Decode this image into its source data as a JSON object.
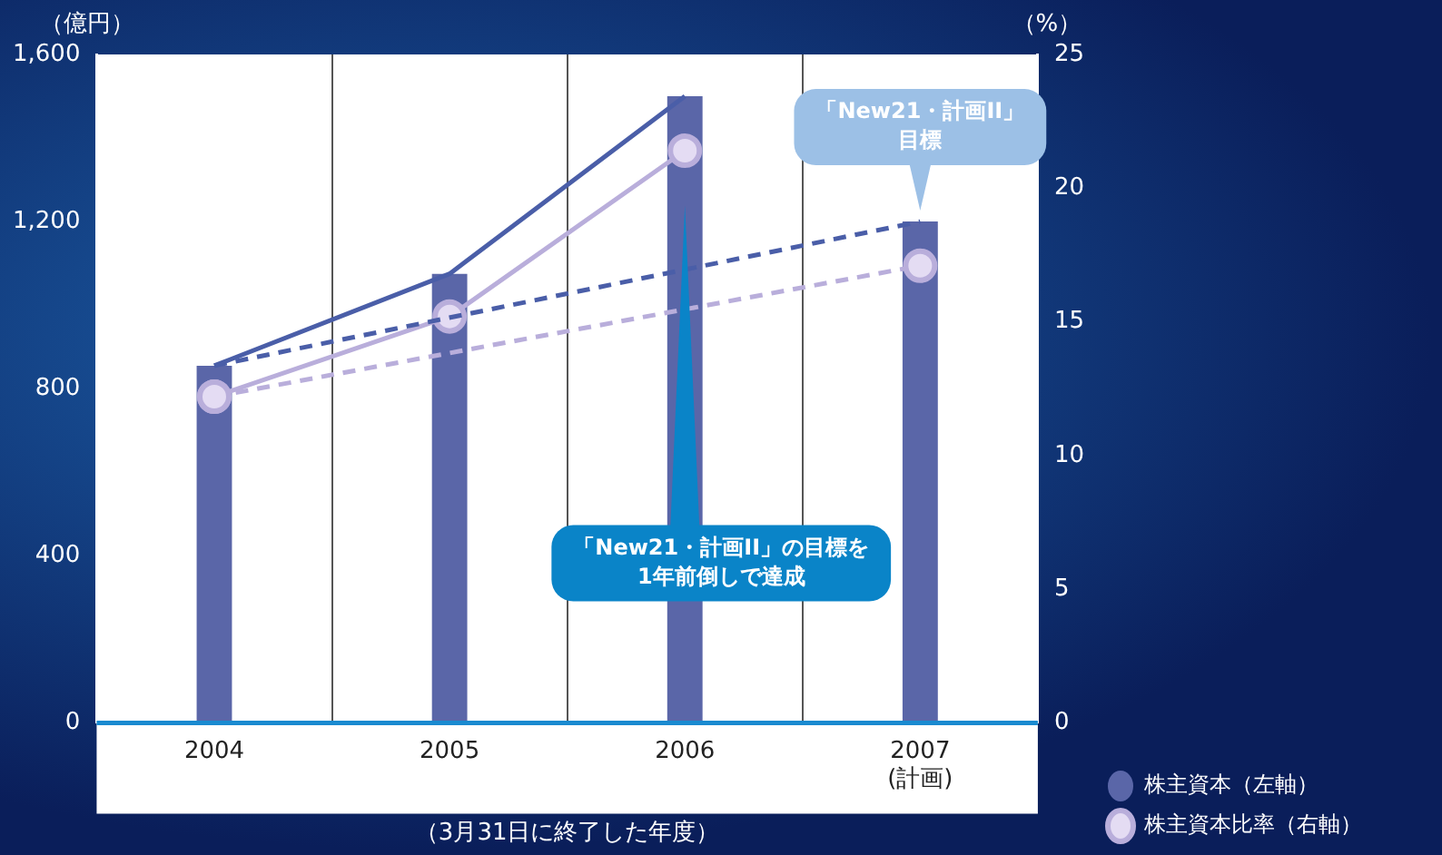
{
  "chart_data": {
    "type": "bar",
    "categories": [
      "2004",
      "2005",
      "2006",
      "2007\n(計画)"
    ],
    "series": [
      {
        "name": "株主資本（左軸）",
        "color": "#5a66a8",
        "values": [
          855,
          1075,
          1500,
          1200
        ]
      },
      {
        "type": "line",
        "color": "#4a5ea8",
        "values": [
          855,
          1075,
          1500,
          null
        ],
        "marker": "none",
        "line_style": "solid"
      },
      {
        "type": "line",
        "color": "#4a5ea8",
        "values": [
          855,
          null,
          null,
          1200
        ],
        "marker": "none",
        "line_style": "dashed"
      },
      {
        "type": "line",
        "name": "株主資本比率（右軸）",
        "color": "#b9aedb",
        "values": [
          12.2,
          15.2,
          21.4,
          null
        ],
        "axis": "y2",
        "marker": "circle",
        "line_style": "solid"
      },
      {
        "type": "line",
        "color": "#b9aedb",
        "values": [
          12.2,
          null,
          null,
          17.1
        ],
        "axis": "y2",
        "marker": "circle",
        "line_style": "dashed"
      }
    ],
    "ylim": [
      0,
      1600
    ],
    "yticks": [
      0,
      400,
      800,
      {
        "value": 1200,
        "label": "1,200"
      },
      {
        "value": 1600,
        "label": "1,600"
      }
    ],
    "y2lim": [
      0,
      25
    ],
    "y2ticks": [
      0,
      5,
      10,
      15,
      20,
      25
    ],
    "ylabel": "（億円）",
    "y2label": "（%）",
    "xlabel": "（3月31日に終了した年度）",
    "grid": "x",
    "legend": "bottom right",
    "annotations": [
      {
        "text": "「New21・計画II」目標",
        "x": "2007\n(計画)",
        "y": 1200
      },
      "「New21・計画II」の目標を1年前倒しで達成"
    ]
  }
}
